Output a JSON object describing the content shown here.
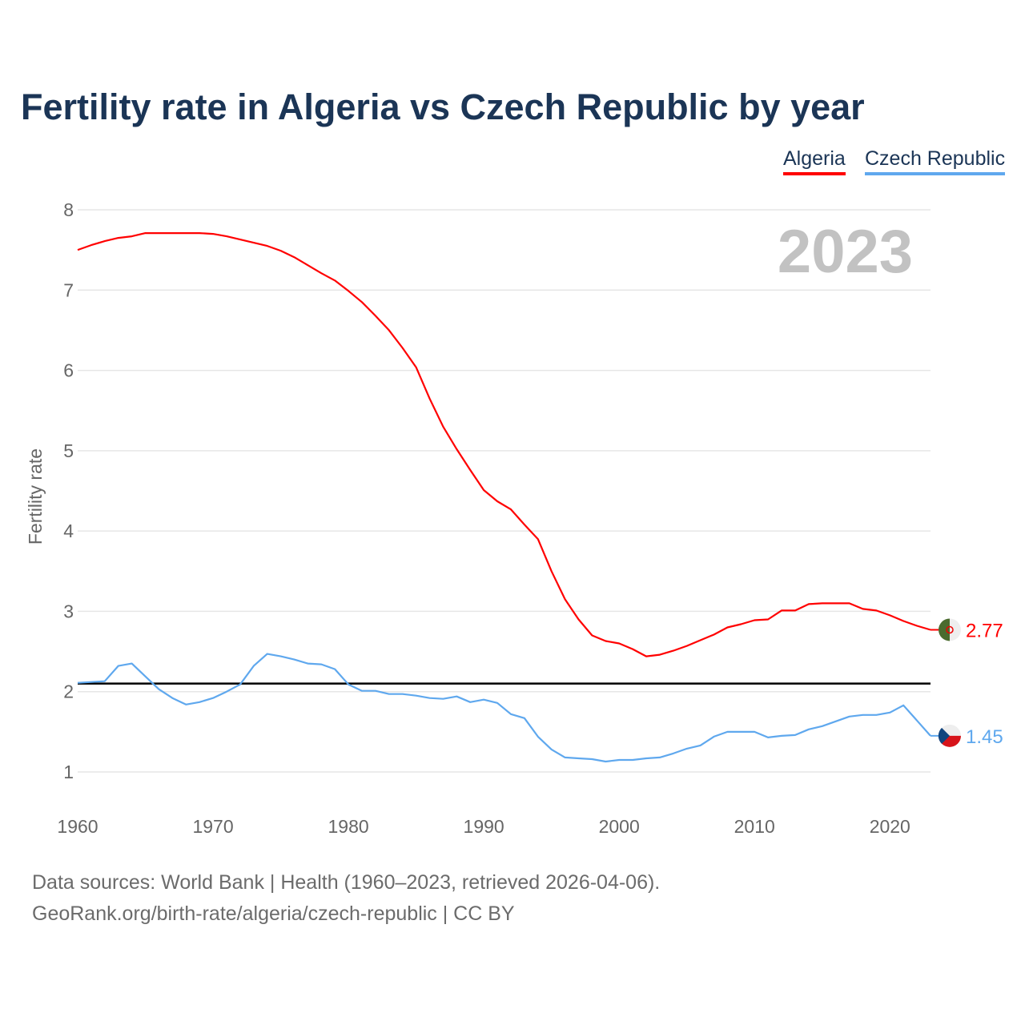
{
  "chart_data": {
    "type": "line",
    "title": "Fertility rate in Algeria vs Czech Republic by year",
    "xlabel": "",
    "ylabel": "Fertility rate",
    "xlim": [
      1960,
      2023
    ],
    "ylim": [
      1,
      8
    ],
    "x_ticks": [
      "1960",
      "1970",
      "1980",
      "1990",
      "2000",
      "2010",
      "2020"
    ],
    "y_ticks": [
      "1",
      "2",
      "3",
      "4",
      "5",
      "6",
      "7",
      "8"
    ],
    "year_label": "2023",
    "reference_line": 2.1,
    "legend_position": "top-right",
    "x": [
      1960,
      1961,
      1962,
      1963,
      1964,
      1965,
      1966,
      1967,
      1968,
      1969,
      1970,
      1971,
      1972,
      1973,
      1974,
      1975,
      1976,
      1977,
      1978,
      1979,
      1980,
      1981,
      1982,
      1983,
      1984,
      1985,
      1986,
      1987,
      1988,
      1989,
      1990,
      1991,
      1992,
      1993,
      1994,
      1995,
      1996,
      1997,
      1998,
      1999,
      2000,
      2001,
      2002,
      2003,
      2004,
      2005,
      2006,
      2007,
      2008,
      2009,
      2010,
      2011,
      2012,
      2013,
      2014,
      2015,
      2016,
      2017,
      2018,
      2019,
      2020,
      2021,
      2022,
      2023
    ],
    "series": [
      {
        "name": "Algeria",
        "color": "#ff0000",
        "end_label": "2.77",
        "values": [
          7.5,
          7.56,
          7.61,
          7.65,
          7.67,
          7.71,
          7.71,
          7.71,
          7.71,
          7.71,
          7.7,
          7.67,
          7.63,
          7.59,
          7.55,
          7.49,
          7.41,
          7.31,
          7.21,
          7.12,
          6.99,
          6.85,
          6.68,
          6.5,
          6.28,
          6.04,
          5.65,
          5.3,
          5.02,
          4.76,
          4.51,
          4.37,
          4.27,
          4.08,
          3.9,
          3.5,
          3.15,
          2.9,
          2.7,
          2.63,
          2.6,
          2.53,
          2.44,
          2.46,
          2.51,
          2.57,
          2.64,
          2.71,
          2.8,
          2.84,
          2.89,
          2.9,
          3.01,
          3.01,
          3.09,
          3.1,
          3.1,
          3.1,
          3.03,
          3.01,
          2.95,
          2.88,
          2.82,
          2.77
        ]
      },
      {
        "name": "Czech Republic",
        "color": "#5fa8ee",
        "end_label": "1.45",
        "values": [
          2.11,
          2.12,
          2.13,
          2.32,
          2.35,
          2.19,
          2.03,
          1.92,
          1.84,
          1.87,
          1.92,
          2.0,
          2.09,
          2.32,
          2.47,
          2.44,
          2.4,
          2.35,
          2.34,
          2.28,
          2.09,
          2.01,
          2.01,
          1.97,
          1.97,
          1.95,
          1.92,
          1.91,
          1.94,
          1.87,
          1.9,
          1.86,
          1.72,
          1.67,
          1.44,
          1.28,
          1.18,
          1.17,
          1.16,
          1.13,
          1.15,
          1.15,
          1.17,
          1.18,
          1.23,
          1.29,
          1.33,
          1.44,
          1.5,
          1.5,
          1.5,
          1.43,
          1.45,
          1.46,
          1.53,
          1.57,
          1.63,
          1.69,
          1.71,
          1.71,
          1.74,
          1.83,
          1.64,
          1.45
        ]
      }
    ]
  },
  "footer": {
    "line1": "Data sources: World Bank | Health (1960–2023, retrieved 2026-04-06).",
    "line2": "GeoRank.org/birth-rate/algeria/czech-republic | CC BY"
  }
}
